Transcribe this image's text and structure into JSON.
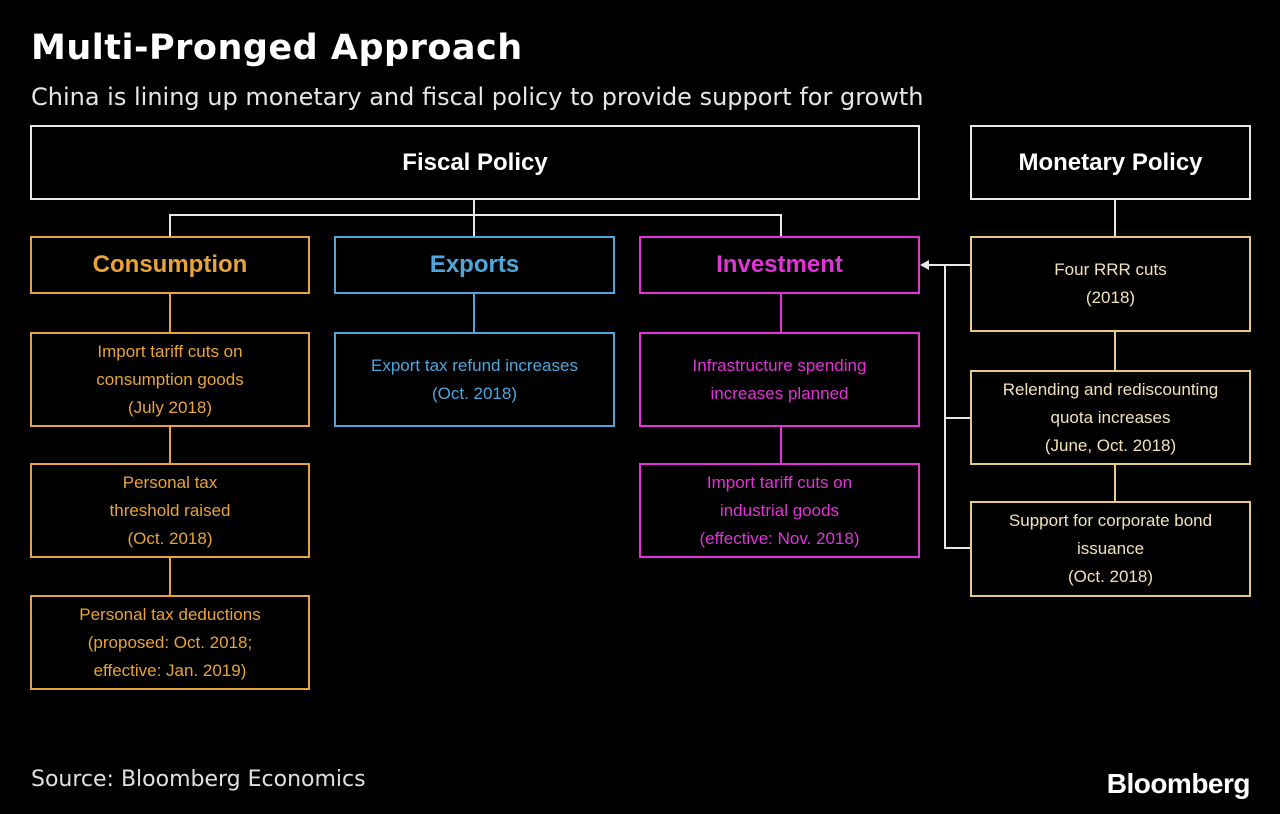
{
  "header": {
    "title": "Multi-Pronged Approach",
    "subtitle": "China is lining up monetary and fiscal policy to provide support for growth"
  },
  "fiscal": {
    "label": "Fiscal Policy",
    "consumption": {
      "label": "Consumption",
      "items": [
        [
          "Import tariff cuts on",
          "consumption goods",
          "(July 2018)"
        ],
        [
          "Personal tax",
          "threshold raised",
          "(Oct. 2018)"
        ],
        [
          "Personal tax deductions",
          "(proposed: Oct. 2018;",
          "effective: Jan. 2019)"
        ]
      ]
    },
    "exports": {
      "label": "Exports",
      "items": [
        [
          "Export tax refund increases",
          "(Oct. 2018)"
        ]
      ]
    },
    "investment": {
      "label": "Investment",
      "items": [
        [
          "Infrastructure spending",
          "increases planned"
        ],
        [
          "Import tariff cuts on",
          "industrial goods",
          "(effective: Nov. 2018)"
        ]
      ]
    }
  },
  "monetary": {
    "label": "Monetary Policy",
    "items": [
      [
        "Four RRR cuts",
        "(2018)"
      ],
      [
        "Relending and rediscounting",
        "quota increases",
        "(June, Oct. 2018)"
      ],
      [
        "Support for corporate bond",
        "issuance",
        "(Oct. 2018)"
      ]
    ]
  },
  "footer": {
    "source": "Source: Bloomberg Economics",
    "brand": "Bloomberg"
  },
  "colors": {
    "background": "#000000",
    "consumption": "#e8a33a",
    "exports": "#4fa6dc",
    "investment": "#e233d8",
    "monetary": "#e8cc7e"
  }
}
